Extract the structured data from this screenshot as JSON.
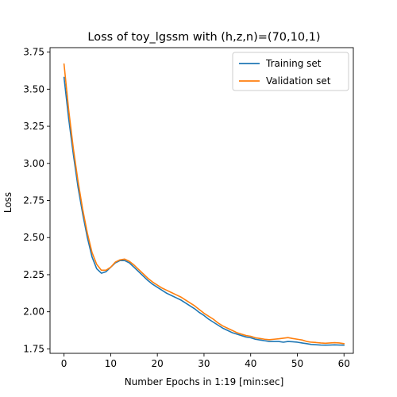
{
  "chart_data": {
    "type": "line",
    "title": "Loss of toy_lgssm with (h,z,n)=(70,10,1)",
    "xlabel": "Number Epochs in  1:19 [min:sec]",
    "ylabel": "Loss",
    "xlim": [
      -3,
      62
    ],
    "ylim": [
      1.72,
      3.78
    ],
    "xticks": [
      0,
      10,
      20,
      30,
      40,
      50,
      60
    ],
    "yticks": [
      1.75,
      2.0,
      2.25,
      2.5,
      2.75,
      3.0,
      3.25,
      3.5,
      3.75
    ],
    "ytick_labels": [
      "1.75",
      "2.00",
      "2.25",
      "2.50",
      "2.75",
      "3.00",
      "3.25",
      "3.50",
      "3.75"
    ],
    "grid": false,
    "legend_position": "top-right",
    "x": [
      0,
      1,
      2,
      3,
      4,
      5,
      6,
      7,
      8,
      9,
      10,
      11,
      12,
      13,
      14,
      15,
      16,
      17,
      18,
      19,
      20,
      21,
      22,
      23,
      24,
      25,
      26,
      27,
      28,
      29,
      30,
      31,
      32,
      33,
      34,
      35,
      36,
      37,
      38,
      39,
      40,
      41,
      42,
      43,
      44,
      45,
      46,
      47,
      48,
      49,
      50,
      51,
      52,
      53,
      54,
      55,
      56,
      57,
      58,
      59,
      60
    ],
    "series": [
      {
        "name": "Training set",
        "color": "#1f77b4",
        "values": [
          3.58,
          3.3,
          3.06,
          2.84,
          2.66,
          2.5,
          2.37,
          2.29,
          2.26,
          2.27,
          2.3,
          2.33,
          2.345,
          2.345,
          2.33,
          2.3,
          2.27,
          2.24,
          2.21,
          2.185,
          2.165,
          2.145,
          2.125,
          2.11,
          2.095,
          2.08,
          2.06,
          2.04,
          2.02,
          1.995,
          1.975,
          1.95,
          1.93,
          1.91,
          1.89,
          1.875,
          1.86,
          1.85,
          1.84,
          1.83,
          1.825,
          1.815,
          1.81,
          1.805,
          1.8,
          1.8,
          1.8,
          1.795,
          1.8,
          1.798,
          1.795,
          1.79,
          1.785,
          1.78,
          1.778,
          1.776,
          1.775,
          1.776,
          1.777,
          1.776,
          1.775
        ]
      },
      {
        "name": "Validation set",
        "color": "#ff7f0e",
        "values": [
          3.67,
          3.36,
          3.1,
          2.88,
          2.69,
          2.53,
          2.4,
          2.32,
          2.28,
          2.28,
          2.3,
          2.335,
          2.35,
          2.355,
          2.34,
          2.315,
          2.285,
          2.255,
          2.225,
          2.2,
          2.18,
          2.16,
          2.145,
          2.13,
          2.115,
          2.1,
          2.08,
          2.06,
          2.04,
          2.015,
          1.99,
          1.97,
          1.95,
          1.925,
          1.905,
          1.89,
          1.875,
          1.86,
          1.85,
          1.84,
          1.835,
          1.825,
          1.82,
          1.815,
          1.812,
          1.815,
          1.818,
          1.822,
          1.826,
          1.82,
          1.815,
          1.81,
          1.8,
          1.795,
          1.793,
          1.79,
          1.788,
          1.79,
          1.792,
          1.79,
          1.785
        ]
      }
    ]
  }
}
